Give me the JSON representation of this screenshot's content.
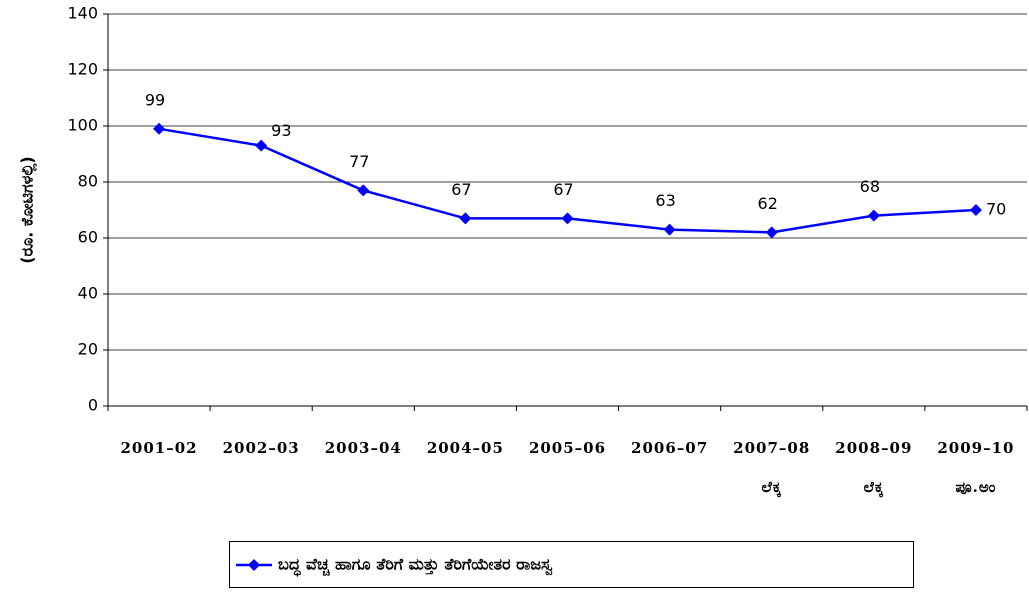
{
  "chart_data": {
    "type": "line",
    "y_label": "(ರೂ. ಕೋಟಿಗಳಲ್ಲಿ)",
    "categories": [
      "2001–02",
      "2002–03",
      "2003–04",
      "2004–05",
      "2005–06",
      "2006–07",
      "2007–08",
      "2008–09",
      "2009–10"
    ],
    "category_sublabels": [
      null,
      null,
      null,
      null,
      null,
      null,
      "ಲೆಕ್ಕ",
      "ಲೆಕ್ಕ",
      "ಪೂ.ಅಂ"
    ],
    "series": [
      {
        "name": "ಬದ್ಧ ವೆಚ್ಚ ಹಾಗೂ ತೆರಿಗೆ ಮತ್ತು ತೆರಿಗೆಯೇತರ ರಾಜಸ್ವ",
        "color": "#0000ff",
        "values": [
          99,
          93,
          77,
          67,
          67,
          63,
          62,
          68,
          70
        ]
      }
    ],
    "ylim": [
      0,
      140
    ],
    "yticks": [
      0,
      20,
      40,
      60,
      80,
      100,
      120,
      140
    ],
    "grid": true,
    "legend": "bottom"
  }
}
